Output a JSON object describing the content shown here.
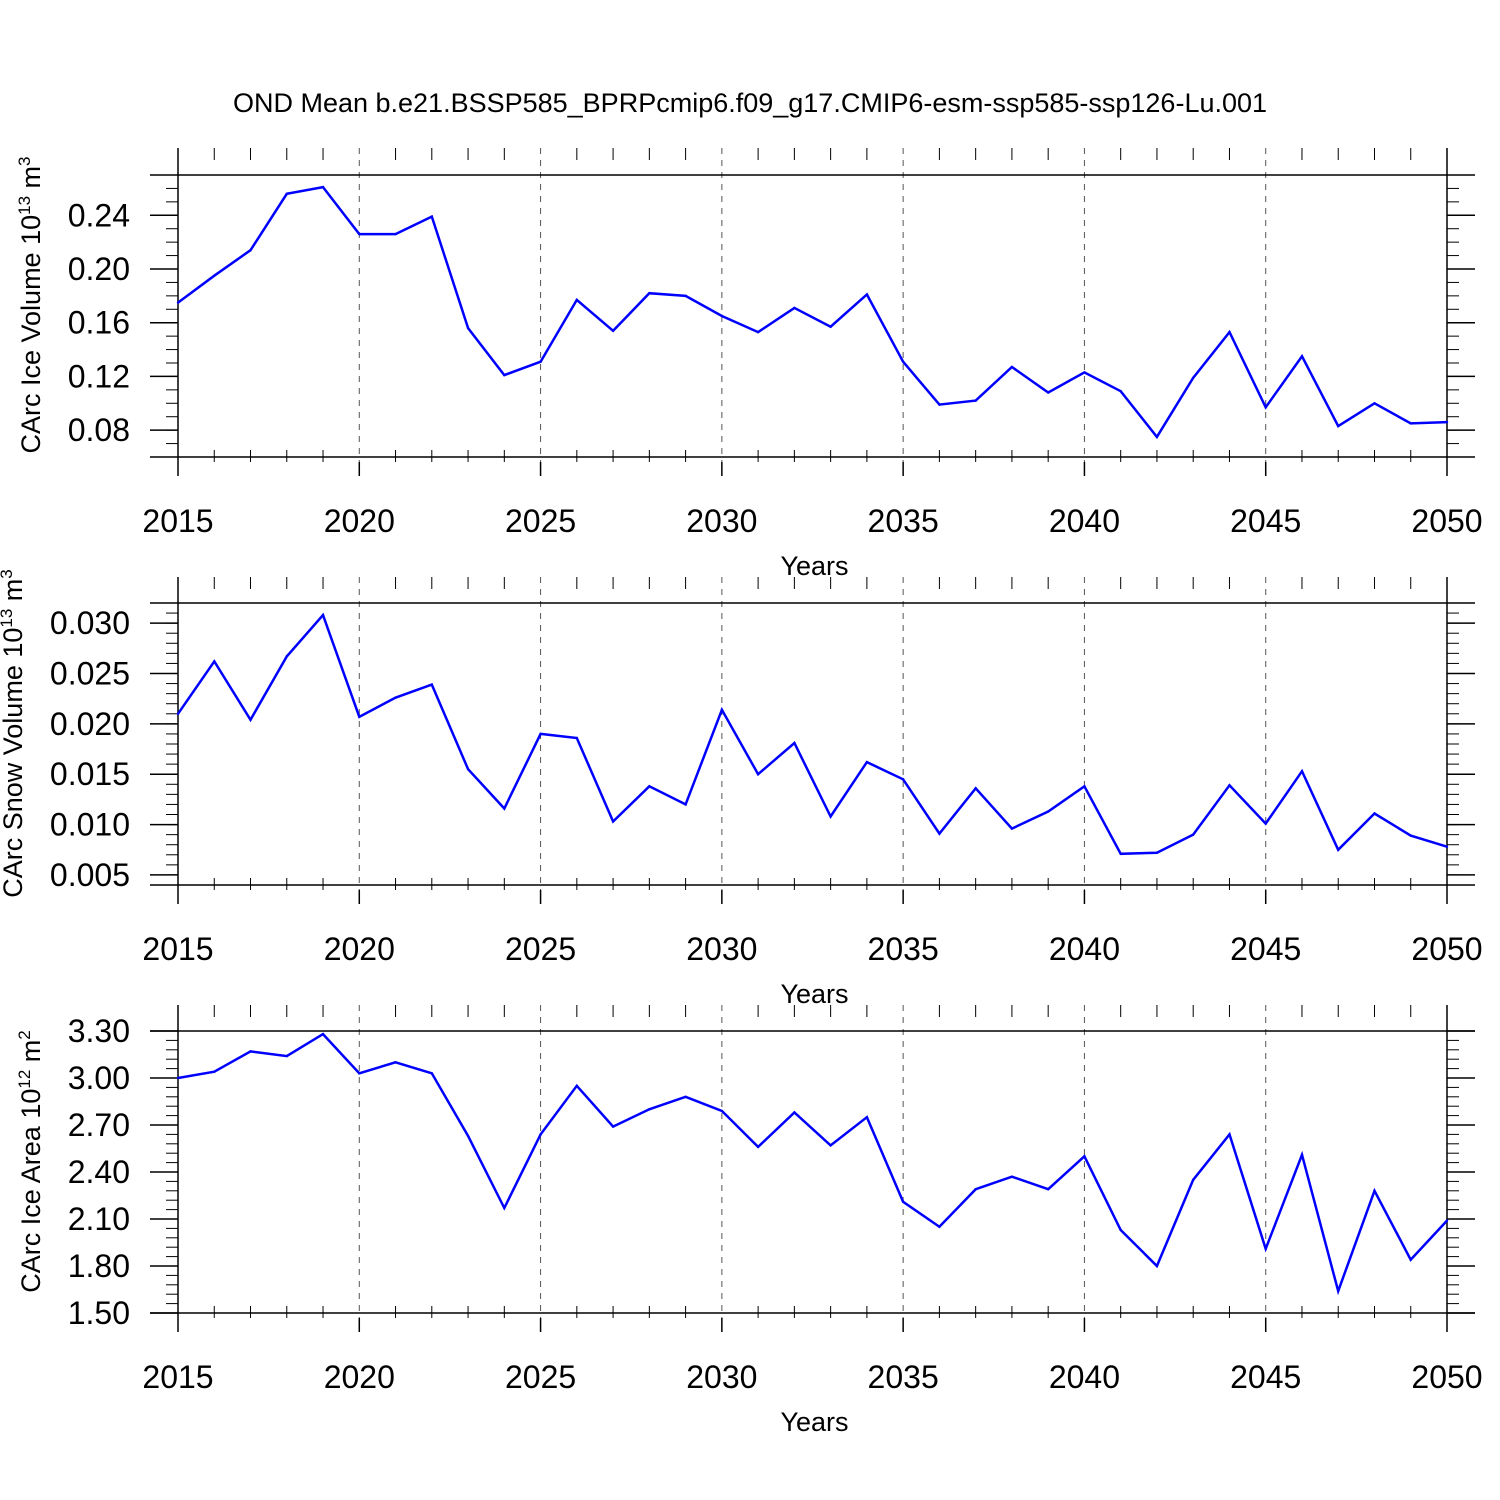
{
  "title": "OND Mean b.e21.BSSP585_BPRPcmip6.f09_g17.CMIP6-esm-ssp585-ssp126-Lu.001",
  "colors": {
    "line": "#0000ff",
    "axis": "#000000",
    "grid": "#555555"
  },
  "chart_data": [
    {
      "type": "line",
      "ylabel_main": "CArc Ice Volume 10",
      "ylabel_exp": "13",
      "ylabel_unit": " m",
      "ylabel_unit_exp": "3",
      "xlabel": "Years",
      "xlim": [
        2015,
        2050
      ],
      "ylim": [
        0.06,
        0.27
      ],
      "yticks": [
        0.08,
        0.12,
        0.16,
        0.2,
        0.24
      ],
      "ytick_labels": [
        "0.08",
        "0.12",
        "0.16",
        "0.20",
        "0.24"
      ],
      "xticks": [
        2015,
        2020,
        2025,
        2030,
        2035,
        2040,
        2045,
        2050
      ],
      "xtick_labels": [
        "2015",
        "2020",
        "2025",
        "2030",
        "2035",
        "2040",
        "2045",
        "2050"
      ],
      "ygrid_minor_step": 0.01,
      "x": [
        2015,
        2016,
        2017,
        2018,
        2019,
        2020,
        2021,
        2022,
        2023,
        2024,
        2025,
        2026,
        2027,
        2028,
        2029,
        2030,
        2031,
        2032,
        2033,
        2034,
        2035,
        2036,
        2037,
        2038,
        2039,
        2040,
        2041,
        2042,
        2043,
        2044,
        2045,
        2046,
        2047,
        2048,
        2049,
        2050
      ],
      "values": [
        0.175,
        0.195,
        0.214,
        0.256,
        0.261,
        0.226,
        0.226,
        0.239,
        0.156,
        0.121,
        0.131,
        0.177,
        0.154,
        0.182,
        0.18,
        0.165,
        0.153,
        0.171,
        0.157,
        0.181,
        0.131,
        0.099,
        0.102,
        0.127,
        0.108,
        0.123,
        0.109,
        0.075,
        0.119,
        0.153,
        0.097,
        0.135,
        0.083,
        0.1,
        0.085,
        0.086
      ]
    },
    {
      "type": "line",
      "ylabel_main": "CArc Snow Volume 10",
      "ylabel_exp": "13",
      "ylabel_unit": " m",
      "ylabel_unit_exp": "3",
      "xlabel": "Years",
      "xlim": [
        2015,
        2050
      ],
      "ylim": [
        0.004,
        0.032
      ],
      "yticks": [
        0.005,
        0.01,
        0.015,
        0.02,
        0.025,
        0.03
      ],
      "ytick_labels": [
        "0.005",
        "0.010",
        "0.015",
        "0.020",
        "0.025",
        "0.030"
      ],
      "xticks": [
        2015,
        2020,
        2025,
        2030,
        2035,
        2040,
        2045,
        2050
      ],
      "xtick_labels": [
        "2015",
        "2020",
        "2025",
        "2030",
        "2035",
        "2040",
        "2045",
        "2050"
      ],
      "ygrid_minor_step": 0.001,
      "x": [
        2015,
        2016,
        2017,
        2018,
        2019,
        2020,
        2021,
        2022,
        2023,
        2024,
        2025,
        2026,
        2027,
        2028,
        2029,
        2030,
        2031,
        2032,
        2033,
        2034,
        2035,
        2036,
        2037,
        2038,
        2039,
        2040,
        2041,
        2042,
        2043,
        2044,
        2045,
        2046,
        2047,
        2048,
        2049,
        2050
      ],
      "values": [
        0.021,
        0.0262,
        0.0204,
        0.0267,
        0.0308,
        0.0207,
        0.0226,
        0.0239,
        0.0155,
        0.0116,
        0.019,
        0.0186,
        0.0103,
        0.0138,
        0.012,
        0.0214,
        0.015,
        0.0181,
        0.0108,
        0.0162,
        0.0145,
        0.0091,
        0.0136,
        0.0096,
        0.0113,
        0.0138,
        0.0071,
        0.0072,
        0.009,
        0.0139,
        0.0101,
        0.0153,
        0.0075,
        0.0111,
        0.0089,
        0.0078
      ]
    },
    {
      "type": "line",
      "ylabel_main": "CArc Ice Area 10",
      "ylabel_exp": "12",
      "ylabel_unit": " m",
      "ylabel_unit_exp": "2",
      "xlabel": "Years",
      "xlim": [
        2015,
        2050
      ],
      "ylim": [
        1.5,
        3.3
      ],
      "yticks": [
        1.5,
        1.8,
        2.1,
        2.4,
        2.7,
        3.0,
        3.3
      ],
      "ytick_labels": [
        "1.50",
        "1.80",
        "2.10",
        "2.40",
        "2.70",
        "3.00",
        "3.30"
      ],
      "xticks": [
        2015,
        2020,
        2025,
        2030,
        2035,
        2040,
        2045,
        2050
      ],
      "xtick_labels": [
        "2015",
        "2020",
        "2025",
        "2030",
        "2035",
        "2040",
        "2045",
        "2050"
      ],
      "ygrid_minor_step": 0.06,
      "x": [
        2015,
        2016,
        2017,
        2018,
        2019,
        2020,
        2021,
        2022,
        2023,
        2024,
        2025,
        2026,
        2027,
        2028,
        2029,
        2030,
        2031,
        2032,
        2033,
        2034,
        2035,
        2036,
        2037,
        2038,
        2039,
        2040,
        2041,
        2042,
        2043,
        2044,
        2045,
        2046,
        2047,
        2048,
        2049,
        2050
      ],
      "values": [
        3.0,
        3.04,
        3.17,
        3.14,
        3.28,
        3.03,
        3.1,
        3.03,
        2.63,
        2.17,
        2.64,
        2.95,
        2.69,
        2.8,
        2.88,
        2.79,
        2.56,
        2.78,
        2.57,
        2.75,
        2.21,
        2.05,
        2.29,
        2.37,
        2.29,
        2.5,
        2.03,
        1.8,
        2.35,
        2.64,
        1.91,
        2.51,
        1.64,
        2.28,
        1.84,
        2.09
      ]
    }
  ]
}
